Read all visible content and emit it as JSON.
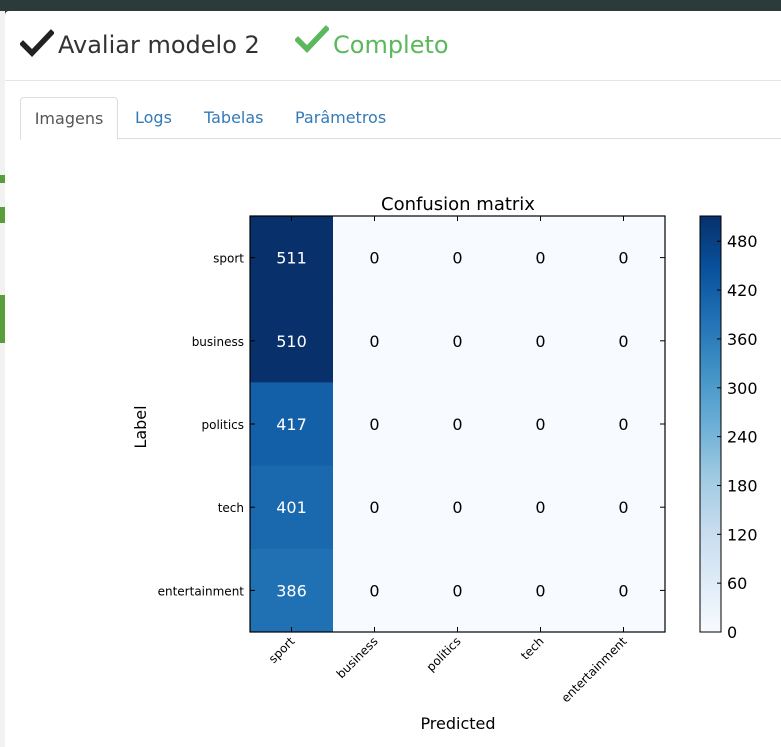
{
  "header": {
    "title": "Avaliar modelo 2",
    "status": "Completo",
    "check_icon_color": "#222222",
    "status_color": "#5cb85c"
  },
  "tabs": [
    {
      "label": "Imagens",
      "active": true
    },
    {
      "label": "Logs",
      "active": false
    },
    {
      "label": "Tabelas",
      "active": false
    },
    {
      "label": "Parâmetros",
      "active": false
    }
  ],
  "chart_data": {
    "type": "heatmap",
    "title": "Confusion matrix",
    "xlabel": "Predicted",
    "ylabel": "Label",
    "x_categories": [
      "sport",
      "business",
      "politics",
      "tech",
      "entertainment"
    ],
    "y_categories": [
      "sport",
      "business",
      "politics",
      "tech",
      "entertainment"
    ],
    "values": [
      [
        511,
        0,
        0,
        0,
        0
      ],
      [
        510,
        0,
        0,
        0,
        0
      ],
      [
        417,
        0,
        0,
        0,
        0
      ],
      [
        401,
        0,
        0,
        0,
        0
      ],
      [
        386,
        0,
        0,
        0,
        0
      ]
    ],
    "colormap": "Blues",
    "color_range": [
      0,
      511
    ],
    "colorbar_ticks": [
      0,
      60,
      120,
      180,
      240,
      300,
      360,
      420,
      480
    ]
  }
}
